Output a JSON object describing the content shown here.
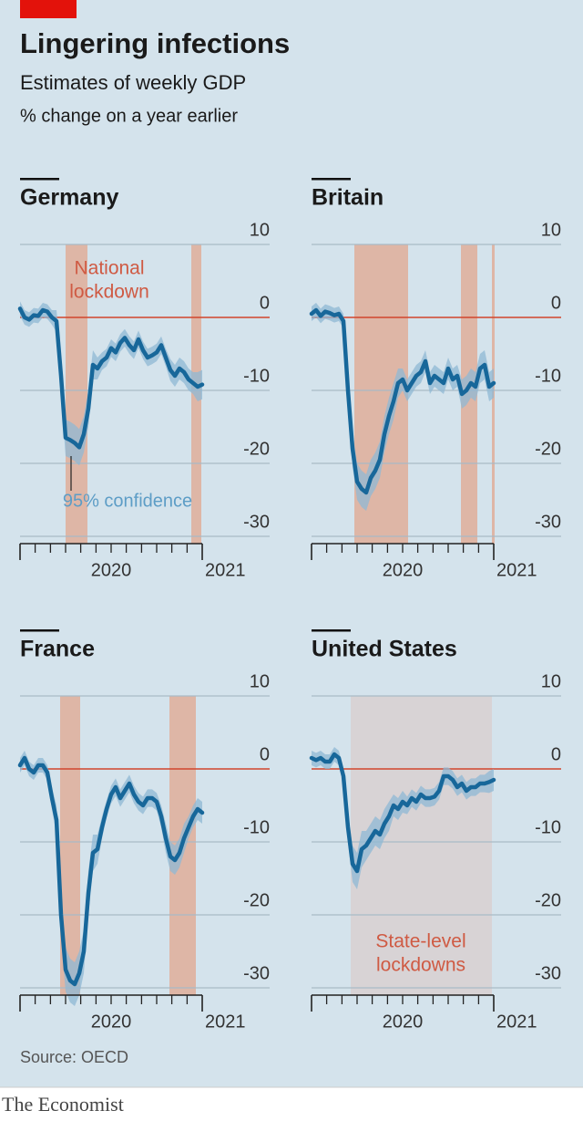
{
  "title": "Lingering infections",
  "subtitle": "Estimates of weekly GDP",
  "unit": "% change on a year earlier",
  "source": "Source: OECD",
  "brand": "The Economist",
  "chart_data": [
    {
      "type": "line",
      "title": "Germany",
      "x": [
        2020,
        2020.025,
        2020.05,
        2020.075,
        2020.1,
        2020.125,
        2020.15,
        2020.175,
        2020.2,
        2020.225,
        2020.25,
        2020.275,
        2020.3,
        2020.325,
        2020.35,
        2020.375,
        2020.4,
        2020.425,
        2020.45,
        2020.475,
        2020.5,
        2020.525,
        2020.55,
        2020.575,
        2020.6,
        2020.625,
        2020.65,
        2020.675,
        2020.7,
        2020.725,
        2020.75,
        2020.775,
        2020.8,
        2020.825,
        2020.85,
        2020.875,
        2020.9,
        2020.925,
        2020.95,
        2020.975,
        2021
      ],
      "series": [
        {
          "color": "#17679a",
          "ci_color": "#8fb8d4",
          "values": [
            1.2,
            0,
            -0.3,
            0.3,
            0.2,
            1,
            0.8,
            0,
            -0.5,
            -8,
            -16.5,
            -16.8,
            -17.2,
            -17.8,
            -16,
            -12.5,
            -6.5,
            -7,
            -6,
            -5.5,
            -4.2,
            -4.8,
            -3.5,
            -2.8,
            -3.8,
            -4.5,
            -3,
            -4.5,
            -5.5,
            -5.2,
            -4.8,
            -3.8,
            -5.5,
            -7.2,
            -8,
            -7,
            -7.5,
            -8.5,
            -9,
            -9.5,
            -9.2
          ],
          "ci": [
            1,
            1,
            1,
            1,
            1,
            1,
            1,
            1,
            1.5,
            2.5,
            2.5,
            2.5,
            2.5,
            2.5,
            2.5,
            2.5,
            2,
            1.5,
            1.2,
            1.2,
            1.2,
            1.2,
            1.2,
            1.2,
            1.2,
            1.2,
            1.2,
            1.2,
            1.2,
            1.2,
            1.2,
            1.2,
            1.2,
            1.5,
            1.5,
            1.5,
            1.5,
            1.5,
            1.5,
            2,
            2
          ]
        }
      ],
      "shades": [
        [
          2020.25,
          2020.37
        ],
        [
          2020.94,
          2020.995
        ]
      ],
      "shade_color": "#deb6a6",
      "shade_label": [
        "National",
        "lockdown"
      ],
      "ci_label": "95% confidence",
      "xlim": [
        2020,
        2021.37
      ],
      "xticks": [
        {
          "value": 2020,
          "label": "2020"
        },
        {
          "value": 2021,
          "label": "2021"
        }
      ],
      "xminorticks": [
        2020.083,
        2020.167,
        2020.25,
        2020.333,
        2020.417,
        2020.5,
        2020.583,
        2020.667,
        2020.75,
        2020.833,
        2020.917
      ],
      "ylim": [
        -31,
        10
      ],
      "yticks": [
        10,
        0,
        -10,
        -20,
        -30
      ],
      "grid": true,
      "zero_color": "#d1452d"
    },
    {
      "type": "line",
      "title": "Britain",
      "x": [
        2020,
        2020.025,
        2020.05,
        2020.075,
        2020.1,
        2020.125,
        2020.15,
        2020.175,
        2020.2,
        2020.225,
        2020.25,
        2020.275,
        2020.3,
        2020.325,
        2020.35,
        2020.375,
        2020.4,
        2020.425,
        2020.45,
        2020.475,
        2020.5,
        2020.525,
        2020.55,
        2020.575,
        2020.6,
        2020.625,
        2020.65,
        2020.675,
        2020.7,
        2020.725,
        2020.75,
        2020.775,
        2020.8,
        2020.825,
        2020.85,
        2020.875,
        2020.9,
        2020.925,
        2020.95,
        2020.975,
        2021
      ],
      "series": [
        {
          "color": "#17679a",
          "ci_color": "#8fb8d4",
          "values": [
            0.5,
            1,
            0.2,
            0.8,
            0.6,
            0.3,
            0.5,
            -0.5,
            -10,
            -18,
            -22.5,
            -23.5,
            -24,
            -22,
            -21,
            -19.5,
            -16,
            -13.5,
            -11.5,
            -9,
            -8.5,
            -10,
            -9,
            -8,
            -7.5,
            -6,
            -9,
            -8,
            -8.5,
            -9,
            -7,
            -8.5,
            -8,
            -10.5,
            -10,
            -9,
            -9.5,
            -7,
            -6.5,
            -9.5,
            -9
          ],
          "ci": [
            1,
            1,
            1,
            1,
            1,
            1,
            1,
            1,
            2,
            2.5,
            2.5,
            2.5,
            2.5,
            2.5,
            2.5,
            2.5,
            2.5,
            2.5,
            2.5,
            2,
            1.5,
            1.5,
            1.5,
            1.5,
            1.5,
            1.5,
            1.5,
            1.5,
            1.5,
            1.5,
            1.5,
            1.5,
            1.5,
            2,
            2,
            2,
            2,
            2,
            2,
            2,
            2
          ]
        }
      ],
      "shades": [
        [
          2020.235,
          2020.53
        ],
        [
          2020.82,
          2020.91
        ],
        [
          2020.99,
          2021.005
        ]
      ],
      "shade_color": "#deb6a6",
      "xlim": [
        2020,
        2021.37
      ],
      "xticks": [
        {
          "value": 2020,
          "label": "2020"
        },
        {
          "value": 2021,
          "label": "2021"
        }
      ],
      "xminorticks": [
        2020.083,
        2020.167,
        2020.25,
        2020.333,
        2020.417,
        2020.5,
        2020.583,
        2020.667,
        2020.75,
        2020.833,
        2020.917
      ],
      "ylim": [
        -31,
        10
      ],
      "yticks": [
        10,
        0,
        -10,
        -20,
        -30
      ],
      "grid": true,
      "zero_color": "#d1452d"
    },
    {
      "type": "line",
      "title": "France",
      "x": [
        2020,
        2020.025,
        2020.05,
        2020.075,
        2020.1,
        2020.125,
        2020.15,
        2020.175,
        2020.2,
        2020.225,
        2020.25,
        2020.275,
        2020.3,
        2020.325,
        2020.35,
        2020.375,
        2020.4,
        2020.425,
        2020.45,
        2020.475,
        2020.5,
        2020.525,
        2020.55,
        2020.575,
        2020.6,
        2020.625,
        2020.65,
        2020.675,
        2020.7,
        2020.725,
        2020.75,
        2020.775,
        2020.8,
        2020.825,
        2020.85,
        2020.875,
        2020.9,
        2020.925,
        2020.95,
        2020.975,
        2021
      ],
      "series": [
        {
          "color": "#17679a",
          "ci_color": "#8fb8d4",
          "values": [
            0.5,
            1.5,
            0,
            -0.5,
            0.5,
            0.5,
            -0.5,
            -4,
            -7,
            -20,
            -27.5,
            -29,
            -29.5,
            -28,
            -25,
            -17,
            -11.5,
            -11,
            -8,
            -5.5,
            -3.5,
            -2.5,
            -4,
            -3,
            -2,
            -3.5,
            -4.5,
            -5,
            -4,
            -4,
            -4.5,
            -6.5,
            -9.5,
            -12,
            -12.5,
            -11.5,
            -9.5,
            -8,
            -6.5,
            -5.5,
            -6
          ],
          "ci": [
            1,
            1,
            1,
            1,
            1,
            1,
            1,
            1.5,
            2,
            3,
            3,
            3,
            3,
            3,
            3,
            3,
            2.5,
            2,
            1.5,
            1.2,
            1.2,
            1.2,
            1.2,
            1.2,
            1.2,
            1.2,
            1.2,
            1.2,
            1.2,
            1.2,
            1.2,
            1.5,
            2,
            2,
            2,
            2,
            2,
            1.5,
            1.5,
            1.5,
            1.5
          ]
        }
      ],
      "shades": [
        [
          2020.22,
          2020.33
        ],
        [
          2020.82,
          2020.965
        ]
      ],
      "shade_color": "#deb6a6",
      "xlim": [
        2020,
        2021.37
      ],
      "xticks": [
        {
          "value": 2020,
          "label": "2020"
        },
        {
          "value": 2021,
          "label": "2021"
        }
      ],
      "xminorticks": [
        2020.083,
        2020.167,
        2020.25,
        2020.333,
        2020.417,
        2020.5,
        2020.583,
        2020.667,
        2020.75,
        2020.833,
        2020.917
      ],
      "ylim": [
        -31,
        10
      ],
      "yticks": [
        10,
        0,
        -10,
        -20,
        -30
      ],
      "grid": true,
      "zero_color": "#d1452d"
    },
    {
      "type": "line",
      "title": "United States",
      "x": [
        2020,
        2020.025,
        2020.05,
        2020.075,
        2020.1,
        2020.125,
        2020.15,
        2020.175,
        2020.2,
        2020.225,
        2020.25,
        2020.275,
        2020.3,
        2020.325,
        2020.35,
        2020.375,
        2020.4,
        2020.425,
        2020.45,
        2020.475,
        2020.5,
        2020.525,
        2020.55,
        2020.575,
        2020.6,
        2020.625,
        2020.65,
        2020.675,
        2020.7,
        2020.725,
        2020.75,
        2020.775,
        2020.8,
        2020.825,
        2020.85,
        2020.875,
        2020.9,
        2020.925,
        2020.95,
        2020.975,
        2021
      ],
      "series": [
        {
          "color": "#17679a",
          "ci_color": "#8fb8d4",
          "values": [
            1.5,
            1.2,
            1.5,
            1,
            1,
            2,
            1.5,
            -1,
            -8,
            -13,
            -14,
            -11,
            -10.5,
            -9.5,
            -8.5,
            -9,
            -7.5,
            -6.5,
            -5,
            -5.5,
            -4.5,
            -5,
            -4,
            -4.5,
            -3.5,
            -4,
            -4,
            -3.8,
            -3,
            -1,
            -1,
            -1.5,
            -2.5,
            -2,
            -3,
            -2.5,
            -2.5,
            -2,
            -2,
            -1.8,
            -1.5
          ],
          "ci": [
            1,
            1,
            1,
            1,
            1,
            1,
            1,
            1,
            2,
            2.5,
            2.5,
            2.5,
            2,
            2,
            2,
            2,
            2,
            2,
            1.5,
            1.5,
            1.5,
            1.2,
            1.2,
            1.2,
            1.2,
            1.2,
            1.2,
            1.2,
            1.2,
            1.2,
            1.2,
            1.2,
            1.2,
            1.2,
            1.2,
            1.2,
            1.2,
            1.2,
            1.2,
            1.5,
            1.5
          ]
        }
      ],
      "shades": [
        [
          2020.215,
          2020.99
        ]
      ],
      "shade_color": "#d8d3d5",
      "shade_label": [
        "State-level",
        "lockdowns"
      ],
      "xlim": [
        2020,
        2021.37
      ],
      "xticks": [
        {
          "value": 2020,
          "label": "2020"
        },
        {
          "value": 2021,
          "label": "2021"
        }
      ],
      "xminorticks": [
        2020.083,
        2020.167,
        2020.25,
        2020.333,
        2020.417,
        2020.5,
        2020.583,
        2020.667,
        2020.75,
        2020.833,
        2020.917
      ],
      "ylim": [
        -31,
        10
      ],
      "yticks": [
        10,
        0,
        -10,
        -20,
        -30
      ],
      "grid": true,
      "zero_color": "#d1452d"
    }
  ]
}
